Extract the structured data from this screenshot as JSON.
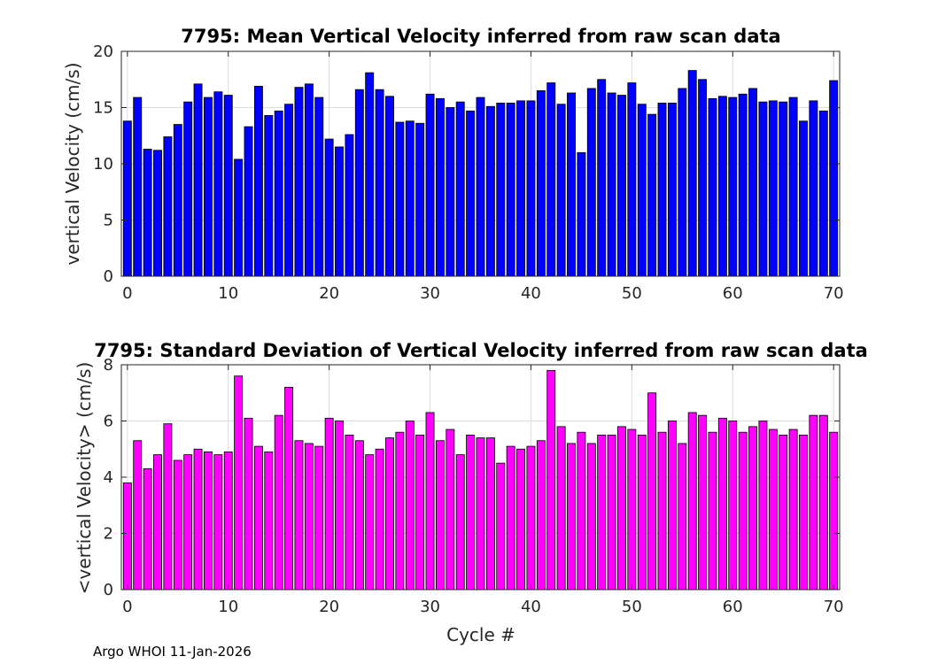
{
  "chart_data": [
    {
      "type": "bar",
      "title": "7795: Mean Vertical Velocity inferred from raw scan data",
      "xlabel": "",
      "ylabel": "vertical Velocity (cm/s)",
      "xlim": [
        -0.6,
        70.6
      ],
      "ylim": [
        0,
        20
      ],
      "xticks": [
        0,
        10,
        20,
        30,
        40,
        50,
        60,
        70
      ],
      "yticks": [
        0,
        5,
        10,
        15,
        20
      ],
      "grid": true,
      "color": "#0000ff",
      "x": [
        0,
        1,
        2,
        3,
        4,
        5,
        6,
        7,
        8,
        9,
        10,
        11,
        12,
        13,
        14,
        15,
        16,
        17,
        18,
        19,
        20,
        21,
        22,
        23,
        24,
        25,
        26,
        27,
        28,
        29,
        30,
        31,
        32,
        33,
        34,
        35,
        36,
        37,
        38,
        39,
        40,
        41,
        42,
        43,
        44,
        45,
        46,
        47,
        48,
        49,
        50,
        51,
        52,
        53,
        54,
        55,
        56,
        57,
        58,
        59,
        60,
        61,
        62,
        63,
        64,
        65,
        66,
        67,
        68,
        69,
        70
      ],
      "values": [
        13.8,
        15.9,
        11.3,
        11.2,
        12.4,
        13.5,
        15.5,
        17.1,
        15.9,
        16.4,
        16.1,
        10.4,
        13.3,
        16.9,
        14.3,
        14.7,
        15.3,
        16.8,
        17.1,
        15.9,
        12.2,
        11.5,
        12.6,
        16.6,
        18.1,
        16.6,
        16.0,
        13.7,
        13.8,
        13.6,
        16.2,
        15.8,
        15.0,
        15.5,
        14.7,
        15.9,
        15.1,
        15.4,
        15.4,
        15.6,
        15.6,
        16.5,
        17.2,
        15.3,
        16.3,
        11.0,
        16.7,
        17.5,
        16.3,
        16.1,
        17.2,
        15.3,
        14.4,
        15.4,
        15.4,
        16.7,
        18.3,
        17.5,
        15.8,
        16.0,
        15.9,
        16.2,
        16.7,
        15.5,
        15.6,
        15.5,
        15.9,
        13.8,
        15.6,
        14.7,
        17.4
      ]
    },
    {
      "type": "bar",
      "title": "7795: Standard Deviation of Vertical Velocity inferred from raw scan data",
      "xlabel": "Cycle #",
      "ylabel": "<vertical Velocity> (cm/s)",
      "xlim": [
        -0.6,
        70.6
      ],
      "ylim": [
        0,
        8
      ],
      "xticks": [
        0,
        10,
        20,
        30,
        40,
        50,
        60,
        70
      ],
      "yticks": [
        0,
        2,
        4,
        6,
        8
      ],
      "grid": true,
      "color": "#ff00ff",
      "x": [
        0,
        1,
        2,
        3,
        4,
        5,
        6,
        7,
        8,
        9,
        10,
        11,
        12,
        13,
        14,
        15,
        16,
        17,
        18,
        19,
        20,
        21,
        22,
        23,
        24,
        25,
        26,
        27,
        28,
        29,
        30,
        31,
        32,
        33,
        34,
        35,
        36,
        37,
        38,
        39,
        40,
        41,
        42,
        43,
        44,
        45,
        46,
        47,
        48,
        49,
        50,
        51,
        52,
        53,
        54,
        55,
        56,
        57,
        58,
        59,
        60,
        61,
        62,
        63,
        64,
        65,
        66,
        67,
        68,
        69,
        70
      ],
      "values": [
        3.8,
        5.3,
        4.3,
        4.8,
        5.9,
        4.6,
        4.8,
        5.0,
        4.9,
        4.8,
        4.9,
        7.6,
        6.1,
        5.1,
        4.9,
        6.2,
        7.2,
        5.3,
        5.2,
        5.1,
        6.1,
        6.0,
        5.5,
        5.3,
        4.8,
        5.0,
        5.4,
        5.6,
        6.0,
        5.5,
        6.3,
        5.3,
        5.7,
        4.8,
        5.5,
        5.4,
        5.4,
        4.5,
        5.1,
        5.0,
        5.1,
        5.3,
        7.8,
        5.8,
        5.2,
        5.6,
        5.2,
        5.5,
        5.5,
        5.8,
        5.7,
        5.5,
        7.0,
        5.6,
        6.0,
        5.2,
        6.3,
        6.2,
        5.6,
        6.1,
        6.0,
        5.6,
        5.8,
        6.0,
        5.7,
        5.5,
        5.7,
        5.5,
        6.2,
        6.2,
        5.6
      ]
    }
  ],
  "footer": "Argo WHOI 11-Jan-2026"
}
